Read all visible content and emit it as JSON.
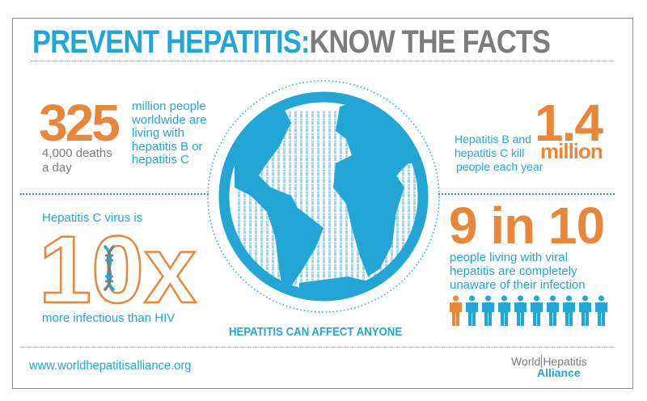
{
  "title": {
    "part1": "PREVENT HEPATITIS:",
    "part2": "KNOW THE FACTS"
  },
  "fact_325": {
    "number": "325",
    "lines": [
      "million people",
      "worldwide are",
      "living with",
      "hepatitis B or",
      "hepatitis C"
    ],
    "sub": [
      "4,000 deaths",
      "a day"
    ]
  },
  "fact_14": {
    "number": "1.4",
    "unit": "million",
    "lines": [
      "Hepatitis B and",
      "hepatitis C kill",
      "people each year"
    ]
  },
  "fact_10x": {
    "intro": "Hepatitis C virus is",
    "number": "10x",
    "outro": "more infectious than HIV"
  },
  "fact_9in10": {
    "number": "9 in 10",
    "lines": [
      "people living with viral",
      "hepatitis are completely",
      "unaware of their infection"
    ],
    "people_total": 10,
    "people_highlighted": 1
  },
  "globe_caption": "HEPATITIS CAN AFFECT ANYONE",
  "footer": {
    "url": "www.worldhepatitisalliance.org",
    "logo": {
      "world": "World",
      "hepatitis": "Hepatitis",
      "alliance": "Alliance"
    }
  },
  "colors": {
    "blue": "#22a6d6",
    "orange": "#e8873a",
    "gray": "#7a7c7e",
    "light_blue": "#bfe3f2"
  }
}
